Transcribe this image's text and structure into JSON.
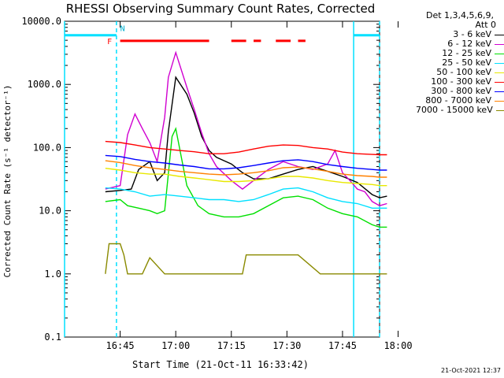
{
  "chart_data": {
    "type": "line",
    "title": "RHESSI Observing Summary Count Rates, Corrected",
    "xlabel": "Start Time (21-Oct-11 16:33:42)",
    "ylabel": "Corrected Count Rate (s⁻¹ detector⁻¹)",
    "xlim_min": [
      -15,
      70
    ],
    "ylim": [
      0.1,
      10000
    ],
    "y_log": true,
    "x_ticks": [
      {
        "m": 0,
        "label": "16:45"
      },
      {
        "m": 15,
        "label": "17:00"
      },
      {
        "m": 30,
        "label": "17:15"
      },
      {
        "m": 45,
        "label": "17:30"
      },
      {
        "m": 60,
        "label": "17:45"
      },
      {
        "m": 75,
        "label": "18:00"
      }
    ],
    "y_ticks": [
      {
        "v": 0.1,
        "label": "0.1"
      },
      {
        "v": 1,
        "label": "1.0"
      },
      {
        "v": 10,
        "label": "10.0"
      },
      {
        "v": 100,
        "label": "100.0"
      },
      {
        "v": 1000,
        "label": "1000.0"
      },
      {
        "v": 10000,
        "label": "10000.0"
      }
    ],
    "legend_header": [
      "Det 1,3,4,5,6,9,",
      "Att 0"
    ],
    "series": [
      {
        "name": "3 - 6 keV",
        "color": "#000000",
        "x": [
          -4,
          0,
          3,
          5,
          8,
          10,
          12,
          13,
          15,
          18,
          20,
          22,
          24,
          26,
          30,
          33,
          36,
          40,
          44,
          48,
          52,
          56,
          60,
          64,
          68,
          70,
          72
        ],
        "y": [
          20,
          21,
          22,
          45,
          60,
          30,
          40,
          180,
          1300,
          700,
          350,
          150,
          90,
          70,
          55,
          40,
          32,
          32,
          38,
          45,
          50,
          42,
          35,
          28,
          18,
          16,
          17
        ]
      },
      {
        "name": "6 - 12 keV",
        "color": "#d000d0",
        "x": [
          -4,
          0,
          2,
          4,
          6,
          8,
          10,
          12,
          13,
          15,
          18,
          20,
          22,
          24,
          26,
          30,
          33,
          36,
          40,
          44,
          48,
          52,
          56,
          58,
          60,
          62,
          64,
          66,
          68,
          70,
          72
        ],
        "y": [
          22,
          25,
          160,
          340,
          200,
          120,
          60,
          300,
          1300,
          3200,
          900,
          400,
          170,
          80,
          50,
          30,
          22,
          30,
          45,
          60,
          50,
          45,
          55,
          90,
          40,
          30,
          22,
          20,
          14,
          12,
          13
        ]
      },
      {
        "name": "12 - 25 keV",
        "color": "#00e000",
        "x": [
          -4,
          0,
          2,
          5,
          8,
          10,
          12,
          14,
          15,
          18,
          21,
          24,
          28,
          32,
          36,
          40,
          44,
          48,
          52,
          56,
          60,
          64,
          68,
          70,
          72
        ],
        "y": [
          14,
          15,
          12,
          11,
          10,
          9,
          10,
          150,
          200,
          25,
          12,
          9,
          8,
          8,
          9,
          12,
          16,
          17,
          15,
          11,
          9,
          8,
          6,
          5.5,
          5.5
        ]
      },
      {
        "name": "25 - 50 keV",
        "color": "#00e0ff",
        "x": [
          -4,
          0,
          4,
          8,
          12,
          16,
          20,
          24,
          28,
          32,
          36,
          40,
          44,
          48,
          52,
          56,
          60,
          64,
          68,
          70,
          72
        ],
        "y": [
          23,
          22,
          20,
          17,
          18,
          17,
          16,
          15,
          15,
          14,
          15,
          18,
          22,
          23,
          20,
          16,
          14,
          13,
          11,
          11,
          11
        ]
      },
      {
        "name": "50 - 100 keV",
        "color": "#e8e800",
        "x": [
          -4,
          0,
          4,
          8,
          12,
          16,
          20,
          24,
          28,
          32,
          36,
          40,
          44,
          48,
          52,
          56,
          60,
          64,
          68,
          70,
          72
        ],
        "y": [
          47,
          44,
          40,
          38,
          38,
          35,
          33,
          31,
          29,
          29,
          30,
          32,
          35,
          35,
          33,
          30,
          28,
          27,
          26,
          25,
          25
        ]
      },
      {
        "name": "100 - 300 keV",
        "color": "#ff0000",
        "x": [
          -4,
          0,
          4,
          8,
          12,
          16,
          20,
          24,
          28,
          32,
          36,
          40,
          44,
          48,
          52,
          56,
          60,
          64,
          68,
          70,
          72
        ],
        "y": [
          125,
          120,
          110,
          100,
          95,
          90,
          86,
          80,
          80,
          85,
          95,
          105,
          110,
          108,
          100,
          95,
          85,
          80,
          78,
          77,
          77
        ]
      },
      {
        "name": "300 - 800 keV",
        "color": "#0000ff",
        "x": [
          -4,
          0,
          4,
          8,
          12,
          16,
          20,
          24,
          28,
          32,
          36,
          40,
          44,
          48,
          52,
          56,
          60,
          64,
          68,
          70,
          72
        ],
        "y": [
          75,
          72,
          65,
          60,
          57,
          53,
          50,
          46,
          46,
          48,
          52,
          57,
          62,
          64,
          60,
          54,
          50,
          47,
          45,
          44,
          44
        ]
      },
      {
        "name": "800 - 7000 keV",
        "color": "#ff8000",
        "x": [
          -4,
          0,
          4,
          8,
          12,
          16,
          20,
          24,
          28,
          32,
          36,
          40,
          44,
          48,
          52,
          56,
          60,
          64,
          68,
          70,
          72
        ],
        "y": [
          62,
          58,
          52,
          48,
          45,
          42,
          40,
          38,
          37,
          38,
          40,
          43,
          48,
          49,
          46,
          42,
          38,
          36,
          35,
          34,
          34
        ]
      },
      {
        "name": "7000 - 15000 keV",
        "color": "#8a8a00",
        "x": [
          -4,
          -3,
          0,
          1,
          2,
          6,
          8,
          12,
          16,
          20,
          26,
          31,
          33,
          34,
          40,
          44,
          48,
          54,
          58,
          60,
          70,
          72
        ],
        "y": [
          1,
          3,
          3,
          2,
          1,
          1,
          1.8,
          1,
          1,
          1,
          1,
          1,
          1,
          2,
          2,
          2,
          2,
          1,
          1,
          1,
          1,
          1
        ]
      }
    ],
    "flag_lines": [
      {
        "label": "",
        "color": "#00e0ff",
        "segments": [
          [
            -16,
            -1
          ],
          [
            63,
            70
          ]
        ],
        "y": 6000
      },
      {
        "label": "F",
        "color": "#ff0000",
        "segments": [
          [
            0,
            24
          ],
          [
            30,
            34
          ],
          [
            36,
            38
          ],
          [
            42,
            46
          ],
          [
            48,
            50
          ]
        ],
        "y": 4900
      }
    ],
    "flag_N_label": "N",
    "event_lines": [
      {
        "m": -16,
        "color": "#00e0ff",
        "style": "solid"
      },
      {
        "m": -1,
        "color": "#00e0ff",
        "style": "dashed"
      },
      {
        "m": 63,
        "color": "#00e0ff",
        "style": "solid"
      },
      {
        "m": 70,
        "color": "#00e0ff",
        "style": "dashed"
      }
    ]
  },
  "footer": {
    "timestamp": "21-Oct-2021 12:37"
  }
}
